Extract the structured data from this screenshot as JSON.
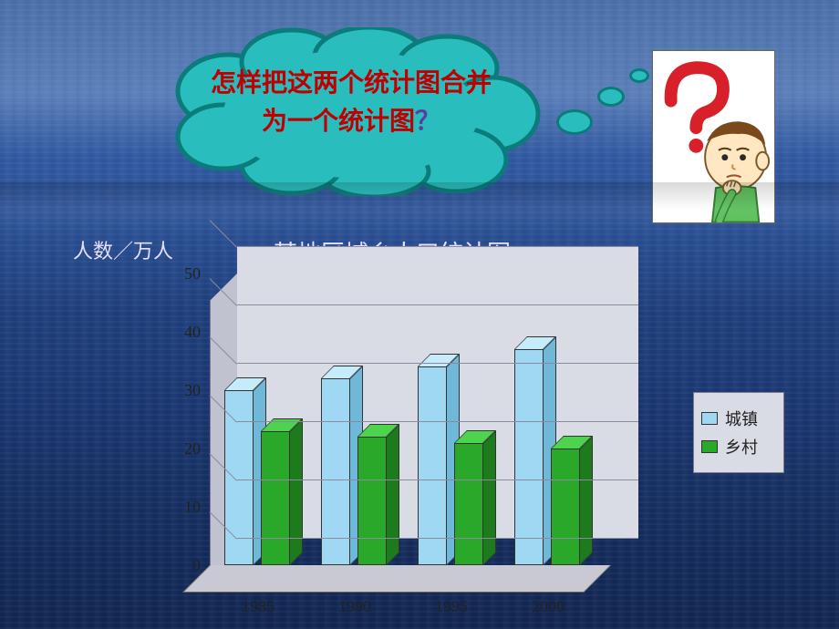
{
  "thought": {
    "text_red": "怎样把这两个统计图合并为一个统计图",
    "text_purple": "？",
    "bubble_fill": "#29BDBD",
    "bubble_stroke": "#0b7b7b"
  },
  "axis_unit": "人数／万人",
  "chart": {
    "title": "某地区城乡人口统计图",
    "type": "bar-3d-grouped",
    "categories": [
      "1985",
      "1990",
      "1995",
      "2000"
    ],
    "series": [
      {
        "name": "城镇",
        "values": [
          30,
          32,
          34,
          37
        ],
        "front": "#9fd8f2",
        "side": "#6fb8d8",
        "top": "#c6ebfb"
      },
      {
        "name": "乡村",
        "values": [
          23,
          22,
          21,
          20
        ],
        "front": "#2aa82a",
        "side": "#1d7a1d",
        "top": "#4cd44c"
      }
    ],
    "ylim": [
      0,
      50
    ],
    "ytick_step": 10,
    "wall_color": "#d9dbe5",
    "floor_color": "#c9c9d4",
    "grid_color": "#8a8aa0",
    "tick_font_color": "#222222"
  },
  "legend": {
    "items": [
      {
        "label": "城镇",
        "color": "#9fd8f2"
      },
      {
        "label": "乡村",
        "color": "#2aa82a"
      }
    ],
    "bg": "#d9dbe5"
  }
}
